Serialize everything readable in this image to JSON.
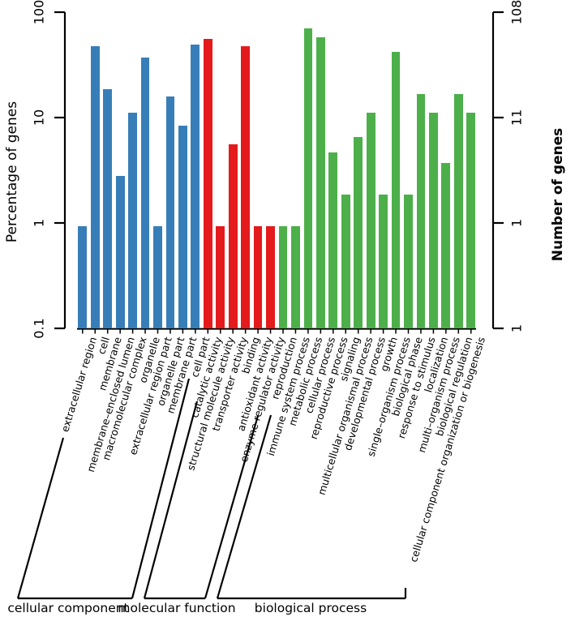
{
  "figure": {
    "left_axis_title": "Percentage of genes",
    "right_axis_title": "Number of genes",
    "left_ticks": [
      "100",
      "10",
      "1",
      "0.1"
    ],
    "right_ticks": [
      "108",
      "11",
      "1",
      "1"
    ]
  },
  "chart_data": {
    "type": "bar",
    "title": "",
    "ylabel": "Percentage of genes",
    "ylabel_right": "Number of genes",
    "y_scale": "log",
    "ylim_percent": [
      0.1,
      100
    ],
    "left_tick_labels": [
      "100",
      "10",
      "1",
      "0.1"
    ],
    "right_tick_labels": [
      "108",
      "11",
      "1",
      "1"
    ],
    "total_genes": 108,
    "grid": false,
    "legend_position": "none",
    "groups": [
      {
        "name": "cellular component",
        "color": "#377EB8",
        "categories": [
          "extracellular region",
          "cell",
          "membrane",
          "membrane–enclosed lumen",
          "macromolecular complex",
          "organelle",
          "extracellular region part",
          "organelle part",
          "membrane part",
          "cell part"
        ],
        "gene_counts": [
          1,
          51,
          20,
          3,
          12,
          40,
          1,
          17,
          9,
          53
        ]
      },
      {
        "name": "molecular function",
        "color": "#E41A1C",
        "categories": [
          "catalytic activity",
          "structural molecule activity",
          "transporter activity",
          "binding",
          "antioxidant activity",
          "enzyme regulator activity"
        ],
        "gene_counts": [
          60,
          1,
          6,
          51,
          1,
          1
        ]
      },
      {
        "name": "biological process",
        "color": "#4DAF4A",
        "categories": [
          "reproduction",
          "immune system process",
          "metabolic process",
          "cellular process",
          "reproductive process",
          "signaling",
          "multicellular organismal process",
          "developmental process",
          "growth",
          "single–organism process",
          "biological phase",
          "response to stimulus",
          "localization",
          "multi–organism process",
          "biological regulation",
          "cellular component organization or biogenesis"
        ],
        "gene_counts": [
          1,
          1,
          76,
          62,
          5,
          2,
          7,
          12,
          2,
          45,
          2,
          18,
          12,
          4,
          18,
          12
        ]
      }
    ]
  }
}
